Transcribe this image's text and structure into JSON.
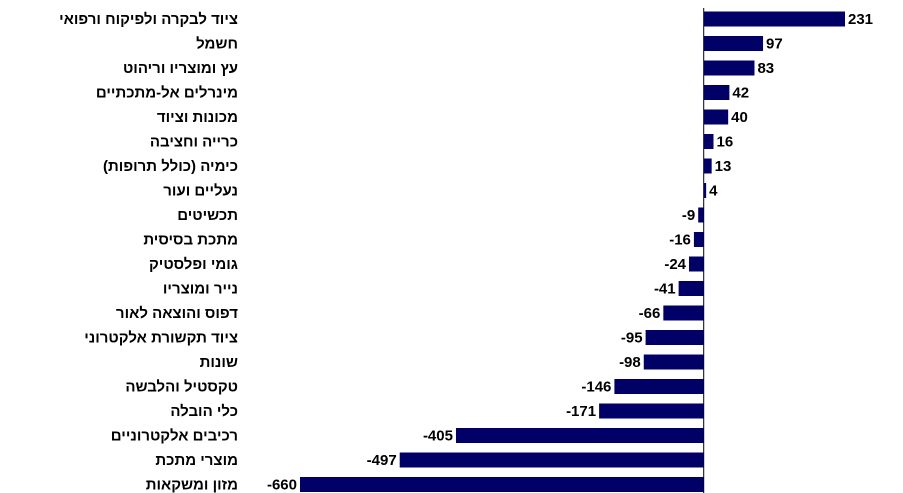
{
  "chart_data": {
    "type": "barh",
    "categories": [
      "ציוד לבקרה ולפיקוח ורפואי",
      "חשמל",
      "עץ ומוצריו וריהוט",
      "מינרלים אל-מתכתיים",
      "מכונות וציוד",
      "כרייה וחציבה",
      "כימיה (כולל תרופות)",
      "נעליים ועור",
      "תכשיטים",
      "מתכת בסיסית",
      "גומי ופלסטיק",
      "נייר ומוצריו",
      "דפוס והוצאה לאור",
      "ציוד תקשורת אלקטרוני",
      "שונות",
      "טקסטיל והלבשה",
      "כלי הובלה",
      "רכיבים אלקטרוניים",
      "מוצרי מתכת",
      "מזון ומשקאות"
    ],
    "values": [
      231,
      97,
      83,
      42,
      40,
      16,
      13,
      4,
      -9,
      -16,
      -24,
      -41,
      -66,
      -95,
      -98,
      -146,
      -171,
      -405,
      -497,
      -660
    ],
    "color": "#000066"
  }
}
